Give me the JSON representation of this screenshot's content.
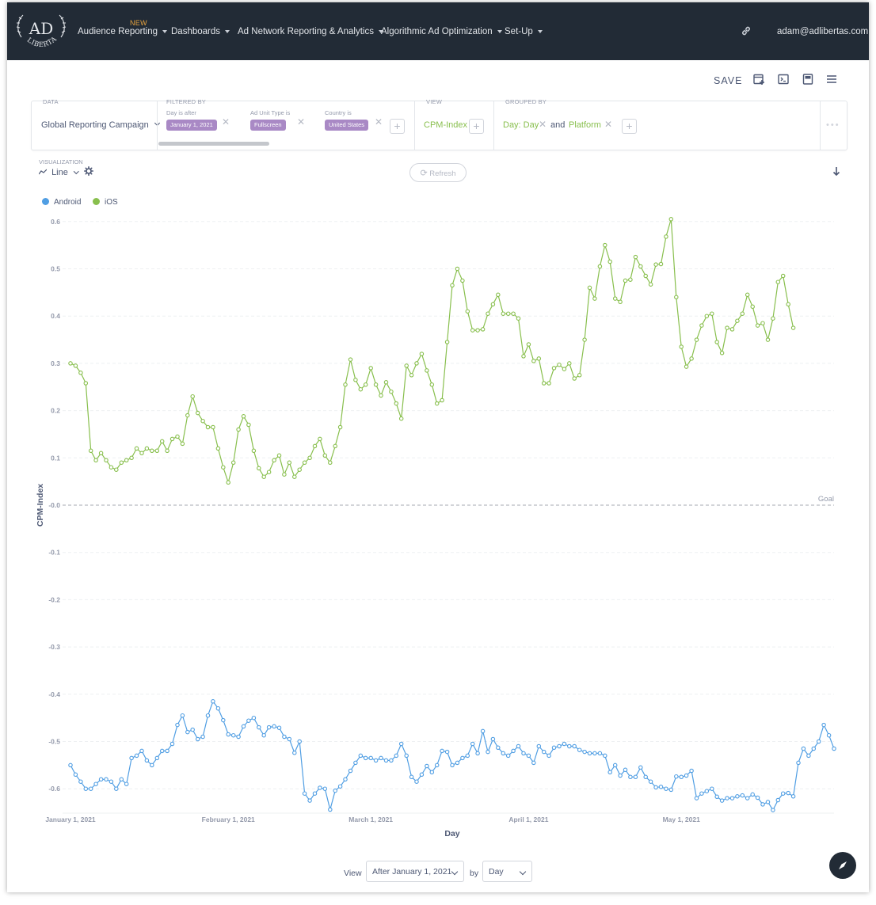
{
  "nav": {
    "logo_top": "AD",
    "logo_bottom": "LIBERTAS",
    "new_badge": "NEW",
    "items": [
      {
        "label": "Audience Reporting"
      },
      {
        "label": "Dashboards"
      },
      {
        "label": "Ad Network Reporting & Analytics"
      },
      {
        "label": "Algorithmic Ad Optimization"
      },
      {
        "label": "Set-Up"
      }
    ],
    "link_icon": "link-icon",
    "user": "adam@adlibertas.com"
  },
  "toolbar": {
    "save_label": "SAVE",
    "icons": [
      "add-to-dashboard-icon",
      "sql-icon",
      "notebook-icon",
      "menu-icon"
    ]
  },
  "query": {
    "data_label": "DATA",
    "data_value": "Global Reporting Campaign",
    "filtered_label": "FILTERED BY",
    "filters": [
      {
        "label": "Day is after",
        "value": "January 1, 2021"
      },
      {
        "label": "Ad Unit Type is",
        "value": "Fullscreen"
      },
      {
        "label": "Country is",
        "value": "United States"
      }
    ],
    "view_label": "VIEW",
    "view_value": "CPM-Index",
    "grouped_label": "GROUPED BY",
    "group_1": "Day: Day",
    "group_and": "and",
    "group_2": "Platform",
    "more": "•••"
  },
  "visualization": {
    "label": "VISUALIZATION",
    "type": "Line",
    "refresh_label": "Refresh"
  },
  "footer": {
    "view_label": "View",
    "range_value": "After January 1, 2021",
    "by_label": "by",
    "unit_value": "Day"
  },
  "colors": {
    "android": "#509ee3",
    "ios": "#88bf4d",
    "nav_bg": "#222b36",
    "filter_pill": "#a989c5"
  },
  "chart_data": {
    "type": "line",
    "xlabel": "Day",
    "ylabel": "CPM-Index",
    "ylim": [
      -0.65,
      0.6
    ],
    "y_ticks": [
      0.6,
      0.5,
      0.4,
      0.3,
      0.2,
      0.1,
      -0.0,
      -0.1,
      -0.2,
      -0.3,
      -0.4,
      -0.5,
      -0.6
    ],
    "y_tick_labels": [
      "0.6",
      "0.5",
      "0.4",
      "0.3",
      "0.2",
      "0.1",
      "-0.0",
      "-0.1",
      "-0.2",
      "-0.3",
      "-0.4",
      "-0.5",
      "-0.6"
    ],
    "x_start": "2021-01-01",
    "x_ticks": [
      {
        "date": "2021-01-01",
        "label": "January 1, 2021"
      },
      {
        "date": "2021-02-01",
        "label": "February 1, 2021"
      },
      {
        "date": "2021-03-01",
        "label": "March 1, 2021"
      },
      {
        "date": "2021-04-01",
        "label": "April 1, 2021"
      },
      {
        "date": "2021-05-01",
        "label": "May 1, 2021"
      }
    ],
    "goal": {
      "value": 0,
      "label": "Goal"
    },
    "legend_position": "top-left",
    "series": [
      {
        "name": "Android",
        "color": "#509ee3",
        "values": [
          -0.55,
          -0.57,
          -0.585,
          -0.6,
          -0.6,
          -0.59,
          -0.58,
          -0.58,
          -0.585,
          -0.6,
          -0.58,
          -0.59,
          -0.535,
          -0.53,
          -0.52,
          -0.54,
          -0.55,
          -0.535,
          -0.52,
          -0.52,
          -0.505,
          -0.465,
          -0.445,
          -0.48,
          -0.475,
          -0.495,
          -0.49,
          -0.445,
          -0.415,
          -0.43,
          -0.455,
          -0.485,
          -0.487,
          -0.49,
          -0.468,
          -0.456,
          -0.45,
          -0.47,
          -0.487,
          -0.47,
          -0.468,
          -0.471,
          -0.49,
          -0.495,
          -0.524,
          -0.5,
          -0.61,
          -0.625,
          -0.61,
          -0.598,
          -0.6,
          -0.644,
          -0.604,
          -0.595,
          -0.58,
          -0.562,
          -0.545,
          -0.53,
          -0.535,
          -0.535,
          -0.54,
          -0.535,
          -0.54,
          -0.54,
          -0.53,
          -0.505,
          -0.53,
          -0.575,
          -0.585,
          -0.57,
          -0.552,
          -0.565,
          -0.55,
          -0.52,
          -0.522,
          -0.55,
          -0.545,
          -0.535,
          -0.53,
          -0.505,
          -0.525,
          -0.478,
          -0.522,
          -0.495,
          -0.513,
          -0.525,
          -0.53,
          -0.52,
          -0.51,
          -0.525,
          -0.53,
          -0.545,
          -0.51,
          -0.522,
          -0.53,
          -0.513,
          -0.51,
          -0.505,
          -0.51,
          -0.51,
          -0.518,
          -0.522,
          -0.525,
          -0.525,
          -0.525,
          -0.53,
          -0.565,
          -0.55,
          -0.572,
          -0.56,
          -0.575,
          -0.575,
          -0.555,
          -0.575,
          -0.585,
          -0.597,
          -0.596,
          -0.6,
          -0.602,
          -0.574,
          -0.575,
          -0.572,
          -0.562,
          -0.62,
          -0.61,
          -0.605,
          -0.6,
          -0.617,
          -0.625,
          -0.62,
          -0.62,
          -0.616,
          -0.614,
          -0.62,
          -0.612,
          -0.619,
          -0.633,
          -0.628,
          -0.645,
          -0.624,
          -0.61,
          -0.609,
          -0.616,
          -0.545,
          -0.515,
          -0.53,
          -0.515,
          -0.5,
          -0.465,
          -0.487,
          -0.515
        ]
      },
      {
        "name": "iOS",
        "color": "#88bf4d",
        "values": [
          0.3,
          0.295,
          0.28,
          0.258,
          0.115,
          0.095,
          0.11,
          0.095,
          0.08,
          0.075,
          0.09,
          0.095,
          0.1,
          0.12,
          0.11,
          0.12,
          0.115,
          0.115,
          0.135,
          0.115,
          0.14,
          0.145,
          0.13,
          0.19,
          0.23,
          0.195,
          0.178,
          0.165,
          0.165,
          0.12,
          0.08,
          0.048,
          0.09,
          0.16,
          0.188,
          0.17,
          0.115,
          0.078,
          0.06,
          0.07,
          0.095,
          0.105,
          0.065,
          0.09,
          0.06,
          0.075,
          0.09,
          0.1,
          0.125,
          0.14,
          0.105,
          0.09,
          0.125,
          0.165,
          0.255,
          0.308,
          0.265,
          0.245,
          0.255,
          0.29,
          0.255,
          0.232,
          0.26,
          0.24,
          0.215,
          0.183,
          0.295,
          0.275,
          0.3,
          0.32,
          0.285,
          0.255,
          0.215,
          0.222,
          0.345,
          0.465,
          0.5,
          0.475,
          0.41,
          0.37,
          0.37,
          0.372,
          0.405,
          0.425,
          0.445,
          0.405,
          0.405,
          0.405,
          0.395,
          0.315,
          0.34,
          0.305,
          0.31,
          0.258,
          0.258,
          0.29,
          0.297,
          0.288,
          0.3,
          0.268,
          0.275,
          0.35,
          0.46,
          0.437,
          0.505,
          0.55,
          0.515,
          0.437,
          0.43,
          0.475,
          0.477,
          0.525,
          0.505,
          0.485,
          0.467,
          0.509,
          0.51,
          0.568,
          0.605,
          0.44,
          0.335,
          0.293,
          0.31,
          0.35,
          0.38,
          0.4,
          0.405,
          0.345,
          0.322,
          0.375,
          0.372,
          0.39,
          0.405,
          0.445,
          0.42,
          0.38,
          0.385,
          0.35,
          0.395,
          0.472,
          0.485,
          0.425,
          0.375
        ]
      }
    ]
  }
}
